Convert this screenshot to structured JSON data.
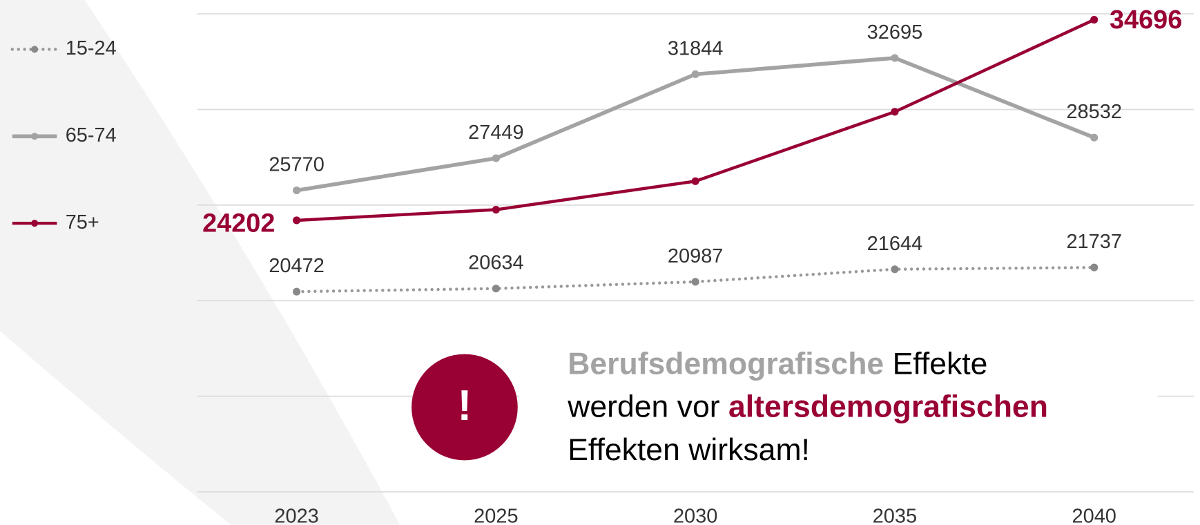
{
  "chart_data": {
    "type": "line",
    "categories": [
      "2023",
      "2025",
      "2030",
      "2035",
      "2040"
    ],
    "ylim": [
      10000,
      35000
    ],
    "yticks": [
      10000,
      15000,
      20000,
      25000,
      30000,
      35000
    ],
    "grid": true,
    "show_y_tick_labels": false,
    "legend": "left",
    "series": [
      {
        "name": "15-24",
        "color": "#999999",
        "dash": "dotted",
        "values": [
          20472,
          20634,
          20987,
          21644,
          21737
        ]
      },
      {
        "name": "65-74",
        "color": "#a3a3a3",
        "dash": "solid",
        "values": [
          25770,
          27449,
          31844,
          32695,
          28532
        ]
      },
      {
        "name": "75+",
        "color": "#990033",
        "dash": "solid",
        "emphasis": true,
        "values": [
          24202,
          24760,
          26250,
          29880,
          34696
        ],
        "value_labels": [
          "24202",
          null,
          null,
          null,
          "34696"
        ]
      }
    ],
    "annotation": {
      "icon": "!",
      "lines": [
        [
          {
            "text": "Berufsdemografische",
            "color": "#a3a3a3",
            "bold": true
          },
          {
            "text": " Effekte",
            "color": "#000000",
            "bold": false
          }
        ],
        [
          {
            "text": "werden vor ",
            "color": "#000000",
            "bold": false
          },
          {
            "text": "altersdemografischen",
            "color": "#990033",
            "bold": true
          }
        ],
        [
          {
            "text": "Effekten wirksam!",
            "color": "#000000",
            "bold": false
          }
        ]
      ]
    }
  }
}
